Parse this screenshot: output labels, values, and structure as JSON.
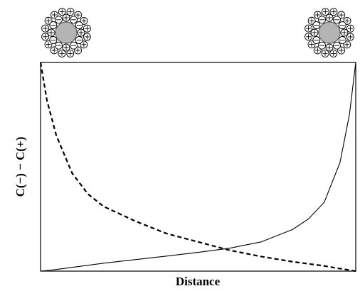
{
  "chart_data": {
    "type": "line",
    "x_label": "Distance",
    "y_label": "C(−) − C(+)",
    "xlim": [
      0,
      1
    ],
    "ylim": [
      0,
      1
    ],
    "x": [
      0,
      0.02,
      0.05,
      0.1,
      0.15,
      0.2,
      0.3,
      0.4,
      0.5,
      0.6,
      0.7,
      0.8,
      0.85,
      0.9,
      0.95,
      0.98,
      1
    ],
    "series": [
      {
        "color": "#000000",
        "dashed": true,
        "values": [
          1,
          0.82,
          0.65,
          0.47,
          0.37,
          0.31,
          0.24,
          0.18,
          0.14,
          0.1,
          0.07,
          0.045,
          0.035,
          0.025,
          0.012,
          0.005,
          0
        ]
      },
      {
        "color": "#000000",
        "dashed": false,
        "values": [
          0,
          0.003,
          0.008,
          0.018,
          0.028,
          0.038,
          0.055,
          0.072,
          0.09,
          0.11,
          0.14,
          0.2,
          0.25,
          0.33,
          0.52,
          0.75,
          1
        ]
      }
    ]
  }
}
